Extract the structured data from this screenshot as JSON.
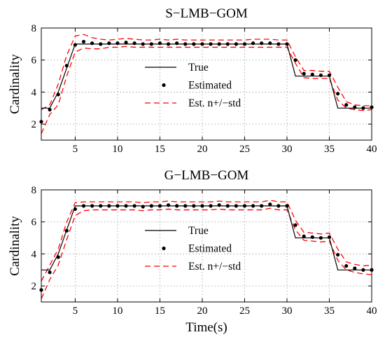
{
  "chart_data": [
    {
      "type": "line",
      "title": "S−LMB−GOM",
      "xlabel": "",
      "ylabel": "Cardinality",
      "xlim": [
        1,
        40
      ],
      "ylim": [
        1,
        8
      ],
      "xticks": [
        5,
        10,
        15,
        20,
        25,
        30,
        35,
        40
      ],
      "yticks": [
        2,
        4,
        6,
        8
      ],
      "grid": true,
      "legend_position": "center",
      "colors": {
        "true": "#000000",
        "estimated": "#000000",
        "std": "#ff0000"
      },
      "x": [
        1,
        2,
        3,
        4,
        5,
        6,
        7,
        8,
        9,
        10,
        11,
        12,
        13,
        14,
        15,
        16,
        17,
        18,
        19,
        20,
        21,
        22,
        23,
        24,
        25,
        26,
        27,
        28,
        29,
        30,
        31,
        32,
        33,
        34,
        35,
        36,
        37,
        38,
        39,
        40
      ],
      "series": [
        {
          "name": "True",
          "style": "solid-line",
          "values": [
            3,
            3,
            4,
            5.5,
            7,
            7,
            7,
            7,
            7,
            7,
            7,
            7,
            7,
            7,
            7,
            7,
            7,
            7,
            7,
            7,
            7,
            7,
            7,
            7,
            7,
            7,
            7,
            7,
            7,
            7,
            5,
            5,
            5,
            5,
            5,
            3,
            3,
            3,
            3,
            3
          ]
        },
        {
          "name": "Estimated",
          "style": "dots",
          "values": [
            2.15,
            2.9,
            3.85,
            5.65,
            6.95,
            7.15,
            7.05,
            7.0,
            7.05,
            7.05,
            7.1,
            7.05,
            7.0,
            7.0,
            7.05,
            7.0,
            7.05,
            7.0,
            7.0,
            7.0,
            7.0,
            7.0,
            7.0,
            7.0,
            7.0,
            7.05,
            7.05,
            7.05,
            7.0,
            7.0,
            6.0,
            5.15,
            5.1,
            5.05,
            5.05,
            3.9,
            3.2,
            3.05,
            3.0,
            3.05
          ]
        },
        {
          "name": "Est. n+/−std",
          "style": "dashed-red",
          "upper": [
            2.9,
            3.2,
            4.5,
            6.3,
            7.5,
            7.6,
            7.4,
            7.3,
            7.25,
            7.3,
            7.35,
            7.3,
            7.25,
            7.25,
            7.3,
            7.25,
            7.3,
            7.25,
            7.25,
            7.25,
            7.25,
            7.25,
            7.25,
            7.25,
            7.25,
            7.3,
            7.3,
            7.3,
            7.25,
            7.25,
            6.2,
            5.35,
            5.35,
            5.3,
            5.3,
            4.3,
            3.4,
            3.2,
            3.15,
            3.15
          ],
          "lower": [
            1.4,
            2.6,
            3.2,
            5.0,
            6.5,
            6.75,
            6.7,
            6.7,
            6.8,
            6.8,
            6.85,
            6.8,
            6.8,
            6.8,
            6.8,
            6.8,
            6.8,
            6.8,
            6.8,
            6.8,
            6.8,
            6.8,
            6.8,
            6.8,
            6.8,
            6.8,
            6.8,
            6.8,
            6.8,
            6.8,
            5.8,
            4.9,
            4.85,
            4.85,
            4.85,
            3.5,
            3.0,
            2.9,
            2.85,
            2.9
          ]
        }
      ]
    },
    {
      "type": "line",
      "title": "G−LMB−GOM",
      "xlabel": "Time(s)",
      "ylabel": "Cardinality",
      "xlim": [
        1,
        40
      ],
      "ylim": [
        1,
        8
      ],
      "xticks": [
        5,
        10,
        15,
        20,
        25,
        30,
        35,
        40
      ],
      "yticks": [
        2,
        4,
        6,
        8
      ],
      "grid": true,
      "legend_position": "center",
      "colors": {
        "true": "#000000",
        "estimated": "#000000",
        "std": "#ff0000"
      },
      "x": [
        1,
        2,
        3,
        4,
        5,
        6,
        7,
        8,
        9,
        10,
        11,
        12,
        13,
        14,
        15,
        16,
        17,
        18,
        19,
        20,
        21,
        22,
        23,
        24,
        25,
        26,
        27,
        28,
        29,
        30,
        31,
        32,
        33,
        34,
        35,
        36,
        37,
        38,
        39,
        40
      ],
      "series": [
        {
          "name": "True",
          "style": "solid-line",
          "values": [
            3,
            3,
            4,
            5.5,
            7,
            7,
            7,
            7,
            7,
            7,
            7,
            7,
            7,
            7,
            7,
            7,
            7,
            7,
            7,
            7,
            7,
            7,
            7,
            7,
            7,
            7,
            7,
            7,
            7,
            7,
            5,
            5,
            5,
            5,
            5,
            3,
            3,
            3,
            3,
            3
          ]
        },
        {
          "name": "Estimated",
          "style": "dots",
          "values": [
            1.75,
            2.85,
            3.8,
            5.45,
            6.8,
            7.0,
            7.0,
            7.0,
            7.0,
            7.0,
            7.0,
            7.0,
            6.95,
            7.0,
            7.0,
            7.05,
            7.0,
            7.0,
            7.0,
            7.0,
            7.0,
            7.05,
            7.0,
            7.0,
            7.0,
            7.0,
            7.0,
            7.1,
            7.0,
            7.0,
            5.8,
            5.1,
            5.05,
            5.0,
            5.05,
            3.95,
            3.25,
            3.1,
            3.0,
            3.0
          ]
        },
        {
          "name": "Est. n+/−std",
          "style": "dashed-red",
          "upper": [
            2.3,
            3.3,
            4.3,
            6.0,
            7.2,
            7.25,
            7.25,
            7.25,
            7.25,
            7.25,
            7.25,
            7.25,
            7.2,
            7.25,
            7.25,
            7.3,
            7.25,
            7.25,
            7.25,
            7.25,
            7.25,
            7.3,
            7.25,
            7.25,
            7.25,
            7.25,
            7.25,
            7.35,
            7.25,
            7.25,
            6.1,
            5.35,
            5.3,
            5.25,
            5.3,
            4.3,
            3.5,
            3.35,
            3.25,
            3.3
          ],
          "lower": [
            1.2,
            2.4,
            3.3,
            4.9,
            6.4,
            6.7,
            6.75,
            6.75,
            6.75,
            6.75,
            6.75,
            6.75,
            6.7,
            6.75,
            6.75,
            6.8,
            6.75,
            6.75,
            6.75,
            6.75,
            6.75,
            6.8,
            6.75,
            6.75,
            6.75,
            6.75,
            6.75,
            6.85,
            6.75,
            6.75,
            5.5,
            4.85,
            4.8,
            4.75,
            4.8,
            3.6,
            3.0,
            2.85,
            2.75,
            2.7
          ]
        }
      ]
    }
  ]
}
